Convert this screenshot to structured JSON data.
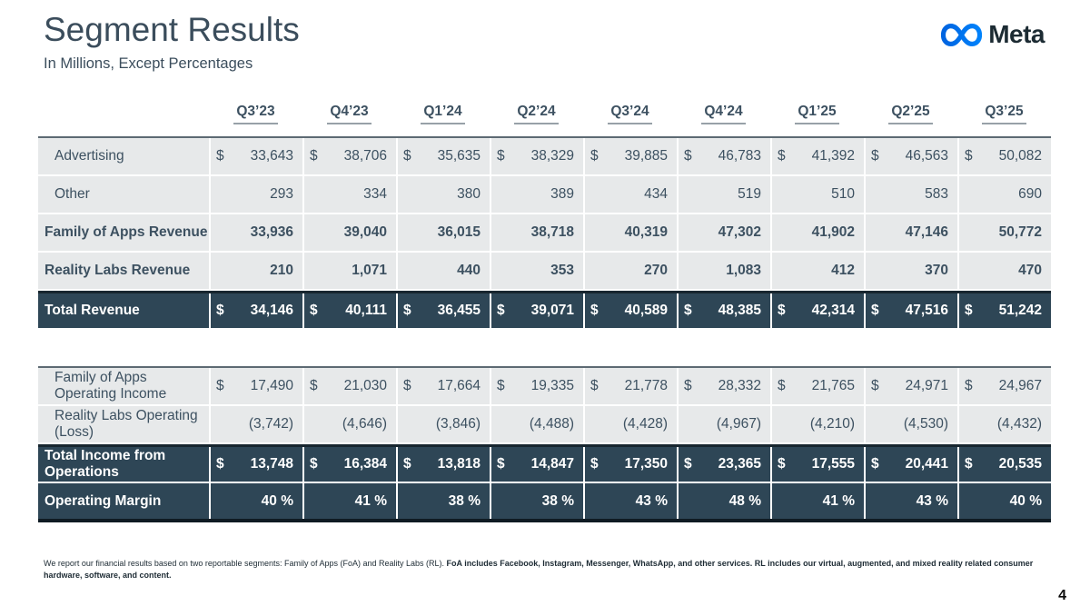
{
  "slide": {
    "title": "Segment Results",
    "subtitle": "In Millions, Except Percentages",
    "logo_text": "Meta",
    "page_number": "4"
  },
  "colors": {
    "dark_row": "#2e4656",
    "light_row": "#e7e9ea",
    "text": "#3d5161",
    "logo_blue_start": "#0064E0",
    "logo_blue_end": "#0082FB"
  },
  "table": {
    "currency_symbol": "$",
    "quarters": [
      "Q3’23",
      "Q4’23",
      "Q1’24",
      "Q2’24",
      "Q3’24",
      "Q4’24",
      "Q1’25",
      "Q2’25",
      "Q3’25"
    ],
    "sections": [
      {
        "rows": [
          {
            "id": "advertising",
            "label": "Advertising",
            "style": "light",
            "bold": false,
            "dollar": true,
            "values": [
              "33,643",
              "38,706",
              "35,635",
              "38,329",
              "39,885",
              "46,783",
              "41,392",
              "46,563",
              "50,082"
            ]
          },
          {
            "id": "other",
            "label": "Other",
            "style": "light",
            "bold": false,
            "dollar": false,
            "values": [
              "293",
              "334",
              "380",
              "389",
              "434",
              "519",
              "510",
              "583",
              "690"
            ]
          },
          {
            "id": "family-of-apps-revenue",
            "label": "Family of Apps Revenue",
            "style": "light",
            "bold": true,
            "dollar": false,
            "values": [
              "33,936",
              "39,040",
              "36,015",
              "38,718",
              "40,319",
              "47,302",
              "41,902",
              "47,146",
              "50,772"
            ]
          },
          {
            "id": "reality-labs-revenue",
            "label": "Reality Labs Revenue",
            "style": "light",
            "bold": true,
            "dollar": false,
            "values": [
              "210",
              "1,071",
              "440",
              "353",
              "270",
              "1,083",
              "412",
              "370",
              "470"
            ]
          },
          {
            "id": "total-revenue",
            "label": "Total Revenue",
            "style": "dark",
            "bold": true,
            "dollar": true,
            "top_border": true,
            "values": [
              "34,146",
              "40,111",
              "36,455",
              "39,071",
              "40,589",
              "48,385",
              "42,314",
              "47,516",
              "51,242"
            ]
          }
        ]
      },
      {
        "rows": [
          {
            "id": "family-of-apps-operating-income",
            "label": "Family of Apps Operating Income",
            "style": "light",
            "bold": false,
            "dollar": true,
            "values": [
              "17,490",
              "21,030",
              "17,664",
              "19,335",
              "21,778",
              "28,332",
              "21,765",
              "24,971",
              "24,967"
            ]
          },
          {
            "id": "reality-labs-operating-loss",
            "label": "Reality Labs Operating (Loss)",
            "style": "light",
            "bold": false,
            "dollar": false,
            "values": [
              "(3,742)",
              "(4,646)",
              "(3,846)",
              "(4,488)",
              "(4,428)",
              "(4,967)",
              "(4,210)",
              "(4,530)",
              "(4,432)"
            ]
          },
          {
            "id": "total-income-from-operations",
            "label": "Total Income from Operations",
            "style": "dark",
            "bold": true,
            "dollar": true,
            "top_border": true,
            "values": [
              "13,748",
              "16,384",
              "13,818",
              "14,847",
              "17,350",
              "23,365",
              "17,555",
              "20,441",
              "20,535"
            ]
          },
          {
            "id": "operating-margin",
            "label": "Operating Margin",
            "style": "dark",
            "bold": true,
            "dollar": false,
            "values": [
              "40 %",
              "41 %",
              "38 %",
              "38 %",
              "43 %",
              "48 %",
              "41 %",
              "43 %",
              "40 %"
            ]
          }
        ]
      }
    ]
  },
  "footnote": {
    "normal": "We report our financial results based on two reportable segments: Family of Apps (FoA) and Reality Labs (RL). ",
    "bold": "FoA includes Facebook, Instagram, Messenger, WhatsApp, and other services. RL includes our virtual, augmented, and mixed reality related consumer hardware, software, and content."
  }
}
